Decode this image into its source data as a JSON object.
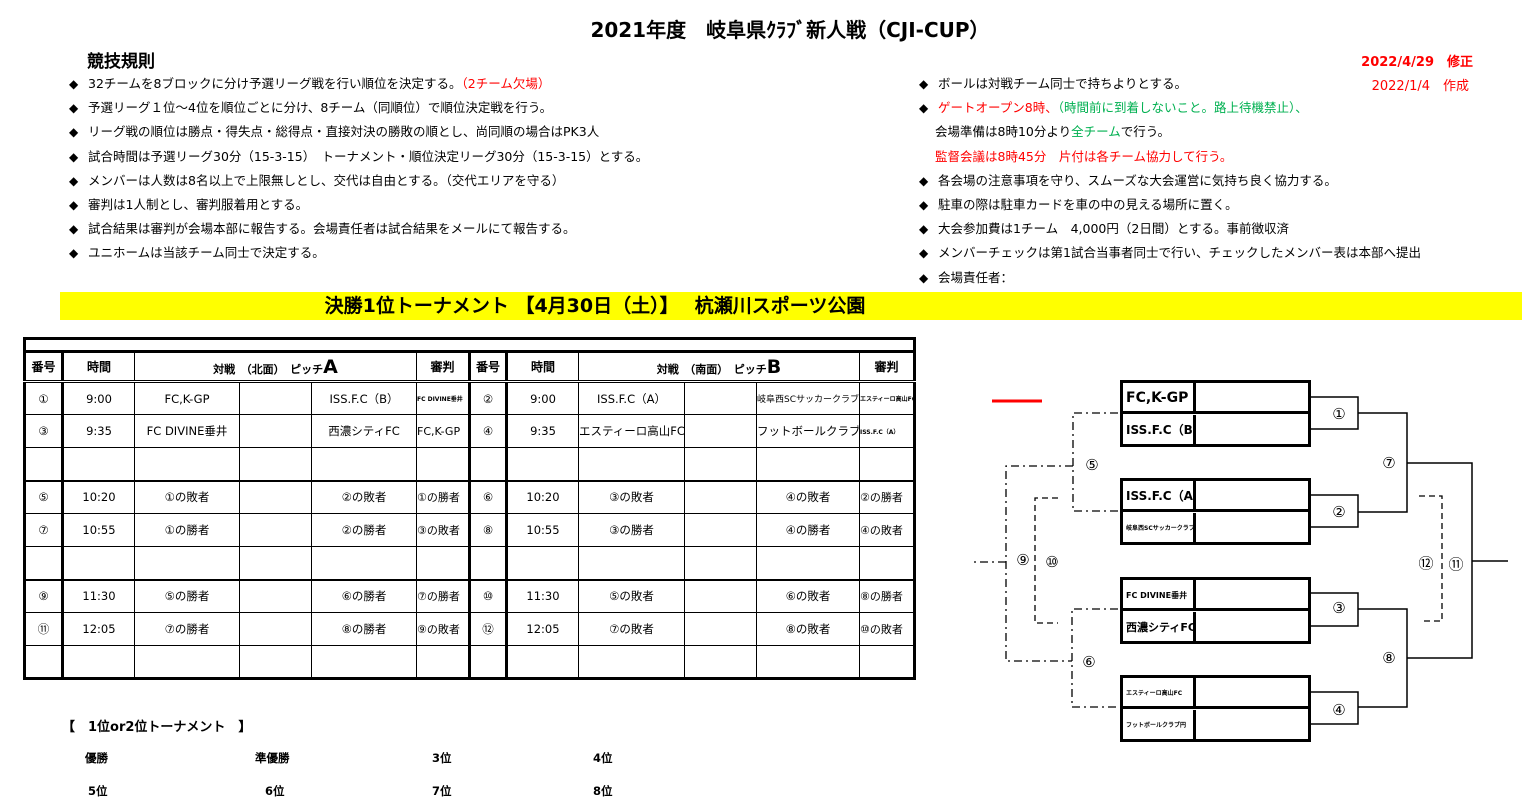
{
  "title": "2021年度　岐阜県ｸﾗﾌﾞ新人戦（CJI-CUP）",
  "rules_heading": "競技規則",
  "dates": {
    "revised": "2022/4/29　修正",
    "created": "2022/1/4　作成"
  },
  "colors": {
    "red": "#ff0000",
    "green": "#00b050",
    "highlight": "#ffff00"
  },
  "rules_left": [
    [
      {
        "text": "32チームを8ブロックに分け予選リーグ戦を行い順位を決定する。",
        "color": "#000000"
      },
      {
        "text": "（2チーム欠場）",
        "color": "#ff0000"
      }
    ],
    [
      {
        "text": "予選リーグ１位～4位を順位ごとに分け、8チーム（同順位）で順位決定戦を行う。",
        "color": "#000000"
      }
    ],
    [
      {
        "text": "リーグ戦の順位は勝点・得失点・総得点・直接対決の勝敗の順とし、尚同順の場合はPK3人",
        "color": "#000000"
      }
    ],
    [
      {
        "text": "試合時間は予選リーグ30分（15-3-15）　トーナメント・順位決定リーグ30分（15-3-15）とする。",
        "color": "#000000"
      }
    ],
    [
      {
        "text": "メンバーは人数は8名以上で上限無しとし、交代は自由とする。（交代エリアを守る）",
        "color": "#000000"
      }
    ],
    [
      {
        "text": "審判は1人制とし、審判服着用とする。",
        "color": "#000000"
      }
    ],
    [
      {
        "text": "試合結果は審判が会場本部に報告する。会場責任者は試合結果をメールにて報告する。",
        "color": "#000000"
      }
    ],
    [
      {
        "text": "ユニホームは当該チーム同士で決定する。",
        "color": "#000000"
      }
    ]
  ],
  "rules_right": [
    {
      "bullet": true,
      "segments": [
        {
          "text": "ボールは対戦チーム同士で持ちよりとする。",
          "color": "#000000"
        }
      ]
    },
    {
      "bullet": true,
      "segments": [
        {
          "text": "ゲートオープン8時、",
          "color": "#ff0000"
        },
        {
          "text": "（時間前に到着しないこと。路上待機禁止）、",
          "color": "#00b050"
        }
      ]
    },
    {
      "bullet": false,
      "segments": [
        {
          "text": "会場準備は8時10分より",
          "color": "#000000"
        },
        {
          "text": "全チーム",
          "color": "#00b050"
        },
        {
          "text": "で行う。",
          "color": "#000000"
        }
      ]
    },
    {
      "bullet": false,
      "segments": [
        {
          "text": "監督会議は8時45分　片付は各チーム協力して行う。",
          "color": "#ff0000"
        }
      ]
    },
    {
      "bullet": true,
      "segments": [
        {
          "text": "各会場の注意事項を守り、スムーズな大会運営に気持ち良く協力する。",
          "color": "#000000"
        }
      ]
    },
    {
      "bullet": true,
      "segments": [
        {
          "text": "駐車の際は駐車カードを車の中の見える場所に置く。",
          "color": "#000000"
        }
      ]
    },
    {
      "bullet": true,
      "segments": [
        {
          "text": "大会参加費は1チーム　4,000円（2日間）とする。事前徴収済",
          "color": "#000000"
        }
      ]
    },
    {
      "bullet": true,
      "segments": [
        {
          "text": "メンバーチェックは第1試合当事者同士で行い、チェックしたメンバー表は本部へ提出",
          "color": "#000000"
        }
      ]
    },
    {
      "bullet": true,
      "segments": [
        {
          "text": "会場責任者：",
          "color": "#000000"
        }
      ]
    }
  ],
  "bullet_symbol": "◆",
  "banner": "決勝1位トーナメント 【4月30日（土）】　 杭瀬川スポーツ公園",
  "schedule": {
    "headers": {
      "no": "番号",
      "time": "時間",
      "match_a": "対戦　（北面）　ピッチ",
      "pitch_a": "A",
      "match_b": "対戦　（南面）　ピッチ",
      "pitch_b": "B",
      "referee": "審判"
    },
    "rows": [
      {
        "a": {
          "no": "①",
          "time": "9:00",
          "home": "FC,K-GP",
          "away": "ISS.F.C（B）",
          "ref": "FC DIVINE垂井"
        },
        "b": {
          "no": "②",
          "time": "9:00",
          "home": "ISS.F.C（A）",
          "away": "岐阜西SCサッカークラブ",
          "ref": "エスティーロ高山FC"
        }
      },
      {
        "a": {
          "no": "③",
          "time": "9:35",
          "home": "FC DIVINE垂井",
          "away": "西濃シティFC",
          "ref": "FC,K-GP"
        },
        "b": {
          "no": "④",
          "time": "9:35",
          "home": "エスティーロ高山FC",
          "away": "フットボールクラブ円",
          "ref": "ISS.F.C（A）"
        }
      },
      {
        "a": {
          "no": "",
          "time": "",
          "home": "",
          "away": "",
          "ref": ""
        },
        "b": {
          "no": "",
          "time": "",
          "home": "",
          "away": "",
          "ref": ""
        }
      },
      {
        "a": {
          "no": "⑤",
          "time": "10:20",
          "home": "①の敗者",
          "away": "②の敗者",
          "ref": "①の勝者"
        },
        "b": {
          "no": "⑥",
          "time": "10:20",
          "home": "③の敗者",
          "away": "④の敗者",
          "ref": "②の勝者"
        }
      },
      {
        "a": {
          "no": "⑦",
          "time": "10:55",
          "home": "①の勝者",
          "away": "②の勝者",
          "ref": "③の敗者"
        },
        "b": {
          "no": "⑧",
          "time": "10:55",
          "home": "③の勝者",
          "away": "④の勝者",
          "ref": "④の敗者"
        }
      },
      {
        "a": {
          "no": "",
          "time": "",
          "home": "",
          "away": "",
          "ref": ""
        },
        "b": {
          "no": "",
          "time": "",
          "home": "",
          "away": "",
          "ref": ""
        }
      },
      {
        "a": {
          "no": "⑨",
          "time": "11:30",
          "home": "⑤の勝者",
          "away": "⑥の勝者",
          "ref": "⑦の勝者"
        },
        "b": {
          "no": "⑩",
          "time": "11:30",
          "home": "⑤の敗者",
          "away": "⑥の敗者",
          "ref": "⑧の勝者"
        }
      },
      {
        "a": {
          "no": "⑪",
          "time": "12:05",
          "home": "⑦の勝者",
          "away": "⑧の勝者",
          "ref": "⑨の敗者"
        },
        "b": {
          "no": "⑫",
          "time": "12:05",
          "home": "⑦の敗者",
          "away": "⑧の敗者",
          "ref": "⑩の敗者"
        }
      },
      {
        "a": {
          "no": "",
          "time": "",
          "home": "",
          "away": "",
          "ref": ""
        },
        "b": {
          "no": "",
          "time": "",
          "home": "",
          "away": "",
          "ref": ""
        }
      }
    ]
  },
  "bracket": {
    "teams": [
      "FC,K-GP",
      "ISS.F.C（B）",
      "ISS.F.C（A）",
      "岐阜西SCサッカークラブ",
      "FC DIVINE垂井",
      "西濃シティFC",
      "エスティーロ高山FC",
      "フットボールクラブ円"
    ],
    "match_numbers": {
      "m1": "①",
      "m2": "②",
      "m3": "③",
      "m4": "④",
      "m5": "⑤",
      "m6": "⑥",
      "m7": "⑦",
      "m8": "⑧",
      "m9": "⑨",
      "m10": "⑩",
      "m11": "⑪",
      "m12": "⑫"
    }
  },
  "placement": {
    "heading": "【　1位or2位トーナメント　】",
    "places": [
      "優勝",
      "準優勝",
      "3位",
      "4位",
      "5位",
      "6位",
      "7位",
      "8位"
    ]
  }
}
